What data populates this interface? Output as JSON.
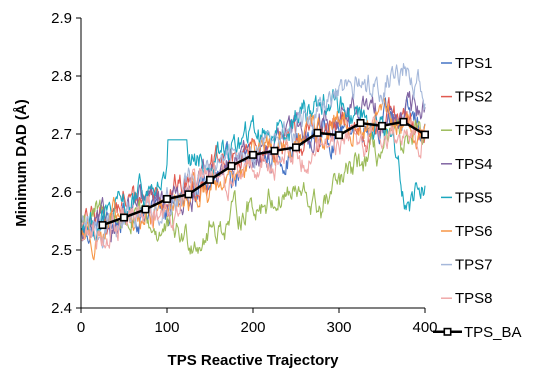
{
  "chart_data": {
    "type": "line",
    "title": "",
    "xlabel": "TPS Reactive Trajectory",
    "ylabel": "Minimum DAD (Å)",
    "xlim": [
      0,
      400
    ],
    "ylim": [
      2.4,
      2.9
    ],
    "x_ticks": [
      0,
      100,
      200,
      300,
      400
    ],
    "y_ticks": [
      2.4,
      2.5,
      2.6,
      2.7,
      2.8,
      2.9
    ],
    "x_tick_labels": [
      "0",
      "100",
      "200",
      "300",
      "400"
    ],
    "y_tick_labels": [
      "2.4",
      "2.5",
      "2.6",
      "2.7",
      "2.8",
      "2.9"
    ],
    "grid": false,
    "legend_position": "right",
    "noisy_series_note_style": "fluctuating raw traces",
    "series": [
      {
        "name": "TPS1",
        "color": "#4472C4",
        "anchors_x": [
          0,
          40,
          80,
          120,
          160,
          200,
          240,
          280,
          320,
          360,
          400
        ],
        "anchors_y": [
          2.53,
          2.55,
          2.57,
          2.59,
          2.62,
          2.65,
          2.67,
          2.7,
          2.72,
          2.73,
          2.71
        ]
      },
      {
        "name": "TPS2",
        "color": "#E15A50",
        "anchors_x": [
          0,
          40,
          80,
          120,
          160,
          200,
          240,
          280,
          320,
          360,
          400
        ],
        "anchors_y": [
          2.54,
          2.57,
          2.6,
          2.61,
          2.64,
          2.67,
          2.68,
          2.7,
          2.71,
          2.72,
          2.7
        ]
      },
      {
        "name": "TPS3",
        "color": "#9BBB59",
        "anchors_x": [
          0,
          40,
          80,
          120,
          160,
          200,
          240,
          280,
          320,
          360,
          400
        ],
        "anchors_y": [
          2.55,
          2.56,
          2.54,
          2.52,
          2.54,
          2.58,
          2.6,
          2.57,
          2.64,
          2.68,
          2.68
        ]
      },
      {
        "name": "TPS4",
        "color": "#8064A2",
        "anchors_x": [
          0,
          40,
          80,
          120,
          160,
          200,
          240,
          280,
          320,
          360,
          400
        ],
        "anchors_y": [
          2.52,
          2.55,
          2.58,
          2.6,
          2.63,
          2.66,
          2.69,
          2.72,
          2.74,
          2.73,
          2.74
        ]
      },
      {
        "name": "TPS5",
        "color": "#1BA7BE",
        "anchors_x": [
          0,
          40,
          80,
          120,
          160,
          200,
          240,
          280,
          320,
          360,
          380,
          400
        ],
        "anchors_y": [
          2.54,
          2.56,
          2.6,
          2.64,
          2.66,
          2.7,
          2.72,
          2.76,
          2.74,
          2.7,
          2.58,
          2.62
        ]
      },
      {
        "name": "TPS6",
        "color": "#F79646",
        "anchors_x": [
          0,
          40,
          80,
          120,
          160,
          200,
          240,
          280,
          320,
          360,
          400
        ],
        "anchors_y": [
          2.53,
          2.54,
          2.56,
          2.58,
          2.62,
          2.66,
          2.68,
          2.7,
          2.71,
          2.72,
          2.71
        ]
      },
      {
        "name": "TPS7",
        "color": "#A5B8DA",
        "anchors_x": [
          0,
          40,
          80,
          120,
          160,
          200,
          240,
          280,
          320,
          360,
          380,
          400
        ],
        "anchors_y": [
          2.53,
          2.55,
          2.57,
          2.61,
          2.64,
          2.68,
          2.7,
          2.74,
          2.78,
          2.8,
          2.82,
          2.76
        ]
      },
      {
        "name": "TPS8",
        "color": "#F0A8A8",
        "anchors_x": [
          0,
          40,
          80,
          120,
          160,
          200,
          240,
          280,
          320,
          360,
          400
        ],
        "anchors_y": [
          2.52,
          2.54,
          2.56,
          2.59,
          2.62,
          2.65,
          2.66,
          2.68,
          2.69,
          2.7,
          2.7
        ]
      },
      {
        "name": "TPS_BA",
        "color": "#000000",
        "marker": "square",
        "x": [
          25,
          50,
          75,
          100,
          125,
          150,
          175,
          200,
          225,
          250,
          275,
          300,
          325,
          350,
          375,
          400
        ],
        "y": [
          2.543,
          2.556,
          2.57,
          2.588,
          2.596,
          2.621,
          2.645,
          2.664,
          2.671,
          2.677,
          2.702,
          2.698,
          2.719,
          2.714,
          2.721,
          2.699
        ]
      }
    ]
  }
}
